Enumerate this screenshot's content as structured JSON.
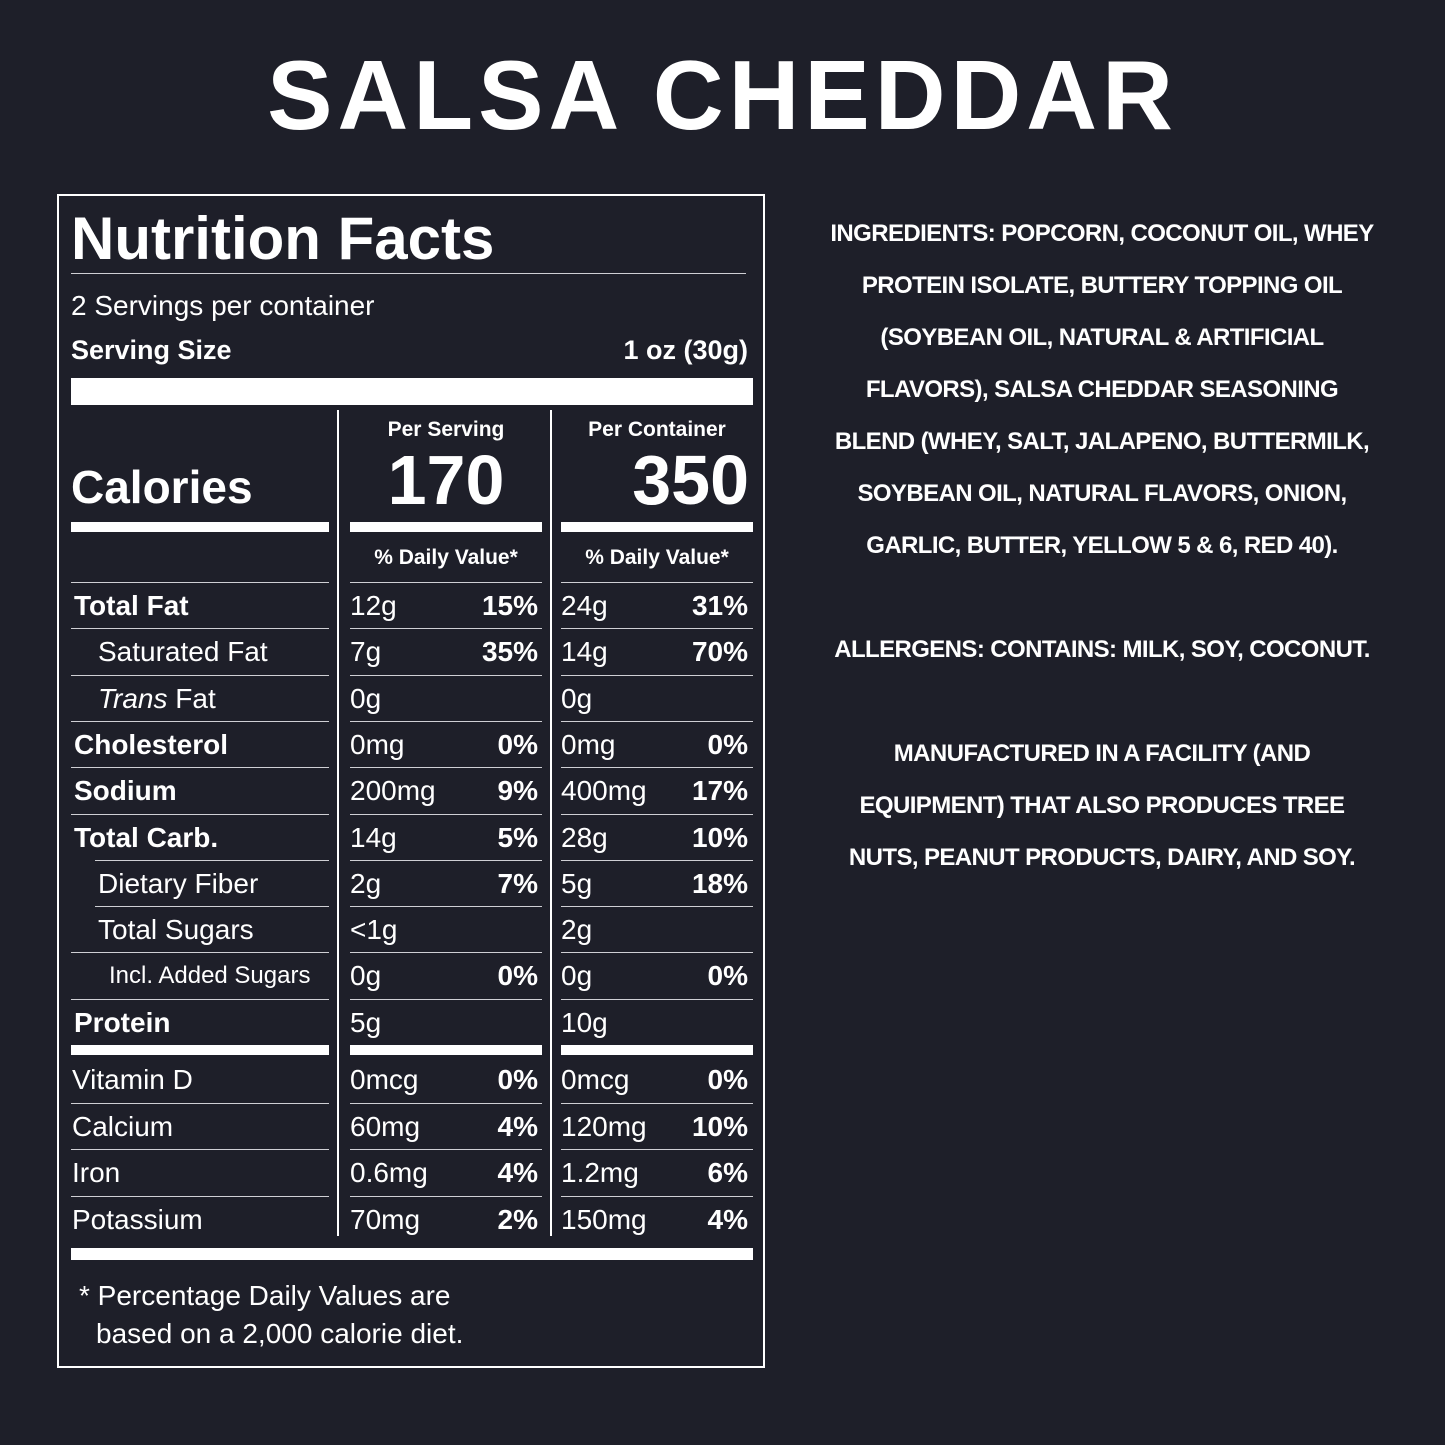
{
  "product_title": "SALSA CHEDDAR",
  "label": {
    "heading": "Nutrition Facts",
    "servings_per_container": "2 Servings per container",
    "serving_size_label": "Serving Size",
    "serving_size_value": "1 oz (30g)",
    "calories_label": "Calories",
    "per_serving_label": "Per Serving",
    "per_container_label": "Per Container",
    "calories_per_serving": "170",
    "calories_per_container": "350",
    "daily_value_header": "% Daily Value*",
    "nutrients": [
      {
        "name": "Total Fat",
        "bold": true,
        "indent": 0,
        "serving": "12g",
        "serving_dv": "15%",
        "container": "24g",
        "container_dv": "31%"
      },
      {
        "name": "Saturated Fat",
        "bold": false,
        "indent": 1,
        "serving": "7g",
        "serving_dv": "35%",
        "container": "14g",
        "container_dv": "70%"
      },
      {
        "name": "Trans Fat",
        "bold": false,
        "indent": 1,
        "italic_prefix": "Trans",
        "serving": "0g",
        "serving_dv": "",
        "container": "0g",
        "container_dv": ""
      },
      {
        "name": "Cholesterol",
        "bold": true,
        "indent": 0,
        "serving": "0mg",
        "serving_dv": "0%",
        "container": "0mg",
        "container_dv": "0%"
      },
      {
        "name": "Sodium",
        "bold": true,
        "indent": 0,
        "serving": "200mg",
        "serving_dv": "9%",
        "container": "400mg",
        "container_dv": "17%"
      },
      {
        "name": "Total Carb.",
        "bold": true,
        "indent": 0,
        "serving": "14g",
        "serving_dv": "5%",
        "container": "28g",
        "container_dv": "10%"
      },
      {
        "name": "Dietary Fiber",
        "bold": false,
        "indent": 1,
        "serving": "2g",
        "serving_dv": "7%",
        "container": "5g",
        "container_dv": "18%"
      },
      {
        "name": "Total Sugars",
        "bold": false,
        "indent": 1,
        "serving": "<1g",
        "serving_dv": "",
        "container": "2g",
        "container_dv": ""
      },
      {
        "name": "Incl. Added Sugars",
        "bold": false,
        "indent": 2,
        "serving": "0g",
        "serving_dv": "0%",
        "container": "0g",
        "container_dv": "0%"
      },
      {
        "name": "Protein",
        "bold": true,
        "indent": 0,
        "serving": "5g",
        "serving_dv": "",
        "container": "10g",
        "container_dv": ""
      }
    ],
    "vitamins": [
      {
        "name": "Vitamin D",
        "serving": "0mcg",
        "serving_dv": "0%",
        "container": "0mcg",
        "container_dv": "0%"
      },
      {
        "name": "Calcium",
        "serving": "60mg",
        "serving_dv": "4%",
        "container": "120mg",
        "container_dv": "10%"
      },
      {
        "name": "Iron",
        "serving": "0.6mg",
        "serving_dv": "4%",
        "container": "1.2mg",
        "container_dv": "6%"
      },
      {
        "name": "Potassium",
        "serving": "70mg",
        "serving_dv": "2%",
        "container": "150mg",
        "container_dv": "4%"
      }
    ],
    "footnote_line1": "* Percentage Daily Values are",
    "footnote_line2": "based on a 2,000 calorie diet."
  },
  "ingredients_lines": [
    "INGREDIENTS: POPCORN, COCONUT OIL, WHEY",
    "PROTEIN ISOLATE, BUTTERY TOPPING OIL",
    "(SOYBEAN OIL, NATURAL & ARTIFICIAL",
    "FLAVORS), SALSA CHEDDAR SEASONING",
    "BLEND (WHEY, SALT, JALAPENO, BUTTERMILK,",
    "SOYBEAN OIL, NATURAL FLAVORS, ONION,",
    "GARLIC, BUTTER, YELLOW 5 & 6, RED 40)."
  ],
  "allergens_lines": [
    "ALLERGENS: CONTAINS: MILK, SOY, COCONUT."
  ],
  "facility_lines": [
    "MANUFACTURED IN A FACILITY (AND",
    "EQUIPMENT) THAT ALSO PRODUCES TREE",
    "NUTS, PEANUT PRODUCTS, DAIRY, AND SOY."
  ],
  "colors": {
    "background": "#1e1f29",
    "text": "#ffffff"
  }
}
